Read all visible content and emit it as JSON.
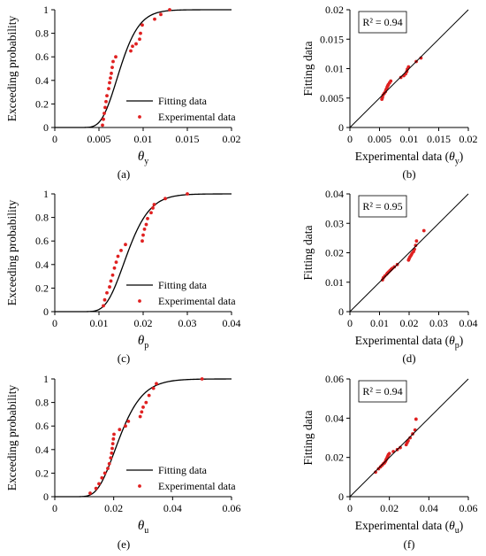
{
  "chart_data": [
    {
      "id": "a",
      "type": "line+scatter",
      "caption": "(a)",
      "ylabel": "Exceeding probability",
      "xlabel_main": "θ",
      "xlabel_sub": "y",
      "xlim": [
        0,
        0.02
      ],
      "ylim": [
        0,
        1
      ],
      "xticks": [
        "0",
        "0.005",
        "0.01",
        "0.015",
        "0.02"
      ],
      "yticks": [
        "0",
        "0.2",
        "0.4",
        "0.6",
        "0.8",
        "1"
      ],
      "legend": {
        "position": "bottom-right",
        "line_label": "Fitting data",
        "points_label": "Experimental data"
      },
      "fit": {
        "distribution": "lognormal",
        "median": 0.0074,
        "sigma": 0.23
      },
      "series": [
        {
          "name": "Fitting data",
          "kind": "line",
          "color": "#000000"
        },
        {
          "name": "Experimental data",
          "kind": "points",
          "color": "#e02020",
          "points": [
            [
              0.0054,
              0.02
            ],
            [
              0.0055,
              0.07
            ],
            [
              0.0056,
              0.12
            ],
            [
              0.0057,
              0.17
            ],
            [
              0.0058,
              0.22
            ],
            [
              0.0059,
              0.27
            ],
            [
              0.0061,
              0.33
            ],
            [
              0.0062,
              0.38
            ],
            [
              0.0063,
              0.42
            ],
            [
              0.0064,
              0.46
            ],
            [
              0.0065,
              0.51
            ],
            [
              0.0066,
              0.56
            ],
            [
              0.0069,
              0.6
            ],
            [
              0.0086,
              0.65
            ],
            [
              0.0088,
              0.69
            ],
            [
              0.0092,
              0.71
            ],
            [
              0.0096,
              0.75
            ],
            [
              0.0097,
              0.8
            ],
            [
              0.0099,
              0.87
            ],
            [
              0.0113,
              0.92
            ],
            [
              0.012,
              0.96
            ],
            [
              0.013,
              1.0
            ]
          ]
        }
      ]
    },
    {
      "id": "b",
      "type": "scatter",
      "caption": "(b)",
      "ylabel": "Fitting data",
      "xlabel_main": "Experimental data (",
      "xlabel_theta": "θ",
      "xlabel_sub": "y",
      "xlabel_close": ")",
      "r2": "R² = 0.94",
      "xlim": [
        0,
        0.02
      ],
      "ylim": [
        0,
        0.02
      ],
      "xticks": [
        "0",
        "0.005",
        "0.01",
        "0.015",
        "0.02"
      ],
      "yticks": [
        "0",
        "0.005",
        "0.01",
        "0.015",
        "0.02"
      ],
      "series": [
        {
          "name": "",
          "kind": "points",
          "color": "#e02020",
          "points": [
            [
              0.0054,
              0.0048
            ],
            [
              0.0055,
              0.0051
            ],
            [
              0.0056,
              0.0055
            ],
            [
              0.0058,
              0.0058
            ],
            [
              0.006,
              0.0061
            ],
            [
              0.0061,
              0.0064
            ],
            [
              0.0062,
              0.0066
            ],
            [
              0.0063,
              0.0069
            ],
            [
              0.0064,
              0.0071
            ],
            [
              0.0065,
              0.0073
            ],
            [
              0.0067,
              0.0076
            ],
            [
              0.0069,
              0.0079
            ],
            [
              0.0086,
              0.0085
            ],
            [
              0.0091,
              0.0088
            ],
            [
              0.0094,
              0.0091
            ],
            [
              0.0096,
              0.0095
            ],
            [
              0.0097,
              0.0099
            ],
            [
              0.0099,
              0.0103
            ],
            [
              0.0112,
              0.0112
            ],
            [
              0.012,
              0.0118
            ]
          ]
        }
      ]
    },
    {
      "id": "c",
      "type": "line+scatter",
      "caption": "(c)",
      "ylabel": "Exceeding probability",
      "xlabel_main": "θ",
      "xlabel_sub": "p",
      "xlim": [
        0,
        0.04
      ],
      "ylim": [
        0,
        1
      ],
      "xticks": [
        "0",
        "0.01",
        "0.02",
        "0.03",
        "0.04"
      ],
      "yticks": [
        "0",
        "0.2",
        "0.4",
        "0.6",
        "0.8",
        "1"
      ],
      "legend": {
        "position": "bottom-right",
        "line_label": "Fitting data",
        "points_label": "Experimental data"
      },
      "fit": {
        "distribution": "lognormal",
        "median": 0.0165,
        "sigma": 0.24
      },
      "series": [
        {
          "name": "Fitting data",
          "kind": "line",
          "color": "#000000"
        },
        {
          "name": "Experimental data",
          "kind": "points",
          "color": "#e02020",
          "points": [
            [
              0.011,
              0.05
            ],
            [
              0.0113,
              0.1
            ],
            [
              0.0118,
              0.16
            ],
            [
              0.0124,
              0.21
            ],
            [
              0.0127,
              0.26
            ],
            [
              0.0131,
              0.31
            ],
            [
              0.0135,
              0.37
            ],
            [
              0.0139,
              0.42
            ],
            [
              0.0143,
              0.47
            ],
            [
              0.015,
              0.52
            ],
            [
              0.016,
              0.57
            ],
            [
              0.0198,
              0.6
            ],
            [
              0.02,
              0.65
            ],
            [
              0.0203,
              0.7
            ],
            [
              0.0207,
              0.74
            ],
            [
              0.021,
              0.79
            ],
            [
              0.0218,
              0.84
            ],
            [
              0.0222,
              0.88
            ],
            [
              0.0225,
              0.91
            ],
            [
              0.025,
              0.96
            ],
            [
              0.03,
              1.0
            ]
          ]
        }
      ]
    },
    {
      "id": "d",
      "type": "scatter",
      "caption": "(d)",
      "ylabel": "Fitting data",
      "xlabel_main": "Experimental data (",
      "xlabel_theta": "θ",
      "xlabel_sub": "p",
      "xlabel_close": ")",
      "r2": "R² = 0.95",
      "xlim": [
        0,
        0.04
      ],
      "ylim": [
        0,
        0.04
      ],
      "xticks": [
        "0",
        "0.01",
        "0.02",
        "0.03",
        "0.04"
      ],
      "yticks": [
        "0",
        "0.01",
        "0.02",
        "0.03",
        "0.04"
      ],
      "series": [
        {
          "name": "",
          "kind": "points",
          "color": "#e02020",
          "points": [
            [
              0.011,
              0.0108
            ],
            [
              0.0113,
              0.0115
            ],
            [
              0.0118,
              0.0121
            ],
            [
              0.0124,
              0.0127
            ],
            [
              0.0127,
              0.0131
            ],
            [
              0.0131,
              0.0135
            ],
            [
              0.0135,
              0.0139
            ],
            [
              0.0139,
              0.0143
            ],
            [
              0.0143,
              0.0147
            ],
            [
              0.015,
              0.0152
            ],
            [
              0.016,
              0.016
            ],
            [
              0.0198,
              0.0175
            ],
            [
              0.02,
              0.018
            ],
            [
              0.0203,
              0.0186
            ],
            [
              0.0207,
              0.0192
            ],
            [
              0.021,
              0.0198
            ],
            [
              0.0215,
              0.0204
            ],
            [
              0.0218,
              0.0212
            ],
            [
              0.0222,
              0.0225
            ],
            [
              0.0225,
              0.024
            ],
            [
              0.025,
              0.0275
            ]
          ]
        }
      ]
    },
    {
      "id": "e",
      "type": "line+scatter",
      "caption": "(e)",
      "ylabel": "Exceeding probability",
      "xlabel_main": "θ",
      "xlabel_sub": "u",
      "xlim": [
        0,
        0.06
      ],
      "ylim": [
        0,
        1
      ],
      "xticks": [
        "0",
        "0.02",
        "0.04",
        "0.06"
      ],
      "yticks": [
        "0",
        "0.2",
        "0.4",
        "0.6",
        "0.8",
        "1"
      ],
      "legend": {
        "position": "bottom-right",
        "line_label": "Fitting data",
        "points_label": "Experimental data"
      },
      "fit": {
        "distribution": "lognormal",
        "median": 0.022,
        "sigma": 0.28
      },
      "series": [
        {
          "name": "Fitting data",
          "kind": "line",
          "color": "#000000"
        },
        {
          "name": "Experimental data",
          "kind": "points",
          "color": "#e02020",
          "points": [
            [
              0.012,
              0.03
            ],
            [
              0.014,
              0.07
            ],
            [
              0.015,
              0.11
            ],
            [
              0.016,
              0.16
            ],
            [
              0.017,
              0.2
            ],
            [
              0.018,
              0.24
            ],
            [
              0.0185,
              0.28
            ],
            [
              0.019,
              0.33
            ],
            [
              0.0193,
              0.37
            ],
            [
              0.0195,
              0.41
            ],
            [
              0.0197,
              0.45
            ],
            [
              0.0199,
              0.49
            ],
            [
              0.0201,
              0.53
            ],
            [
              0.022,
              0.57
            ],
            [
              0.024,
              0.6
            ],
            [
              0.025,
              0.64
            ],
            [
              0.029,
              0.68
            ],
            [
              0.0295,
              0.72
            ],
            [
              0.03,
              0.76
            ],
            [
              0.031,
              0.8
            ],
            [
              0.032,
              0.86
            ],
            [
              0.0335,
              0.92
            ],
            [
              0.0345,
              0.96
            ],
            [
              0.05,
              1.0
            ]
          ]
        }
      ]
    },
    {
      "id": "f",
      "type": "scatter",
      "caption": "(f)",
      "ylabel": "Fitting data",
      "xlabel_main": "Experimental data (",
      "xlabel_theta": "θ",
      "xlabel_sub": "u",
      "xlabel_close": ")",
      "r2": "R² = 0.94",
      "xlim": [
        0,
        0.06
      ],
      "ylim": [
        0,
        0.06
      ],
      "xticks": [
        "0",
        "0.02",
        "0.04",
        "0.06"
      ],
      "yticks": [
        "0",
        "0.02",
        "0.04",
        "0.06"
      ],
      "series": [
        {
          "name": "",
          "kind": "points",
          "color": "#e02020",
          "points": [
            [
              0.013,
              0.0125
            ],
            [
              0.0145,
              0.0142
            ],
            [
              0.0155,
              0.0152
            ],
            [
              0.0163,
              0.016
            ],
            [
              0.017,
              0.0168
            ],
            [
              0.0175,
              0.0172
            ],
            [
              0.018,
              0.018
            ],
            [
              0.0183,
              0.0188
            ],
            [
              0.0186,
              0.0193
            ],
            [
              0.0189,
              0.02
            ],
            [
              0.0192,
              0.0207
            ],
            [
              0.0195,
              0.0214
            ],
            [
              0.02,
              0.022
            ],
            [
              0.022,
              0.023
            ],
            [
              0.024,
              0.024
            ],
            [
              0.0255,
              0.025
            ],
            [
              0.0285,
              0.0265
            ],
            [
              0.029,
              0.0275
            ],
            [
              0.0295,
              0.0285
            ],
            [
              0.0305,
              0.03
            ],
            [
              0.0318,
              0.032
            ],
            [
              0.033,
              0.034
            ],
            [
              0.0335,
              0.0395
            ]
          ]
        }
      ]
    }
  ]
}
